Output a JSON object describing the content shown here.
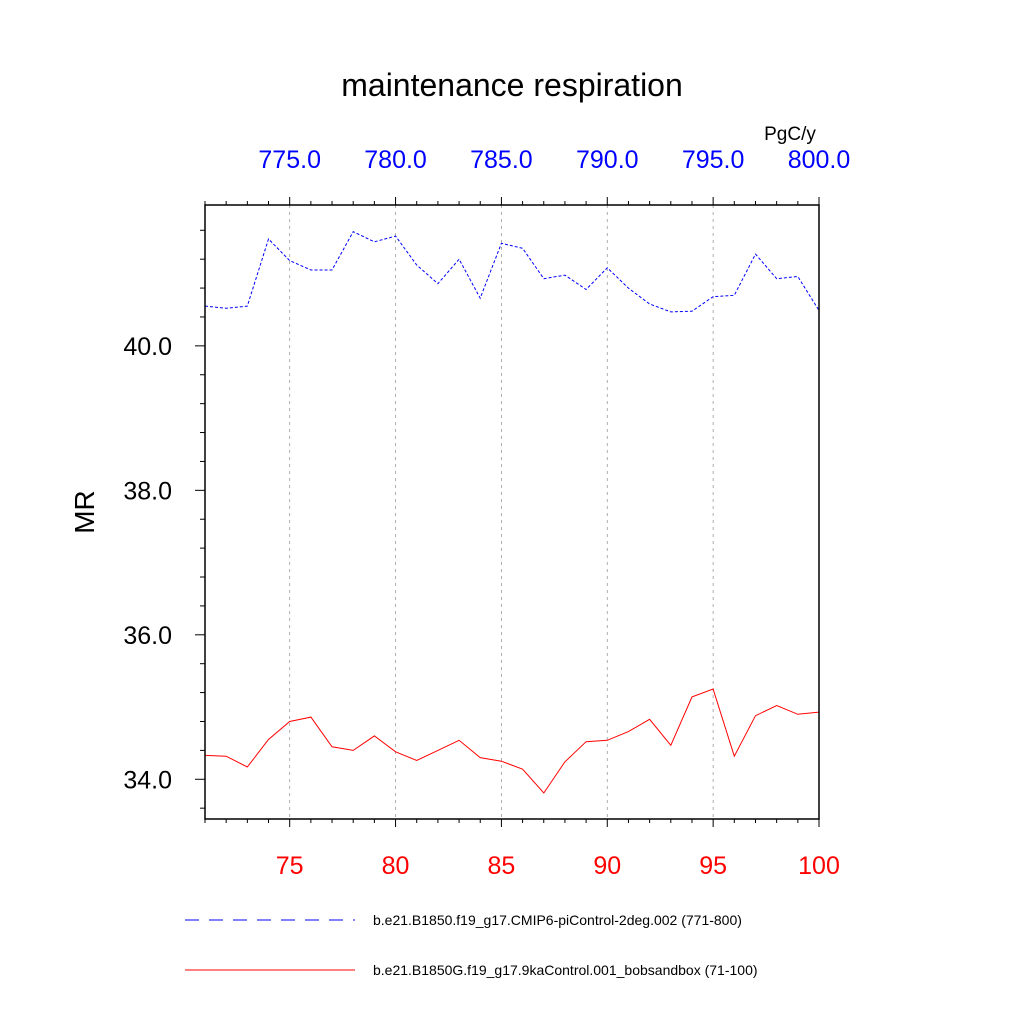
{
  "chart_data": {
    "type": "line",
    "title": "maintenance respiration",
    "units": "PgC/y",
    "ylabel": "MR",
    "ylim": [
      33.45,
      41.95
    ],
    "y_ticks": [
      34.0,
      36.0,
      38.0,
      40.0
    ],
    "y_tick_labels": [
      "34.0",
      "36.0",
      "38.0",
      "40.0"
    ],
    "x_bottom": {
      "range": [
        71,
        100
      ],
      "ticks": [
        75,
        80,
        85,
        90,
        95,
        100
      ],
      "tick_labels": [
        "75",
        "80",
        "85",
        "90",
        "95",
        "100"
      ],
      "color": "#ff0000"
    },
    "x_top": {
      "range": [
        771,
        800
      ],
      "ticks": [
        775,
        780,
        785,
        790,
        795,
        800
      ],
      "tick_labels": [
        "775.0",
        "780.0",
        "785.0",
        "790.0",
        "795.0",
        "800.0"
      ],
      "color": "#0000ff"
    },
    "grid": "vertical dashed at major ticks",
    "series": [
      {
        "name": "b.e21.B1850.f19_g17.CMIP6-piControl-2deg.002 (771-800)",
        "axis": "top",
        "color": "#0000ff",
        "dash": "dashed",
        "x": [
          771,
          772,
          773,
          774,
          775,
          776,
          777,
          778,
          779,
          780,
          781,
          782,
          783,
          784,
          785,
          786,
          787,
          788,
          789,
          790,
          791,
          792,
          793,
          794,
          795,
          796,
          797,
          798,
          799,
          800
        ],
        "values": [
          40.55,
          40.52,
          40.55,
          41.48,
          41.18,
          41.05,
          41.05,
          41.58,
          41.44,
          41.52,
          41.12,
          40.86,
          41.2,
          40.66,
          41.42,
          41.35,
          40.93,
          40.98,
          40.78,
          41.08,
          40.8,
          40.58,
          40.47,
          40.48,
          40.68,
          40.7,
          41.27,
          40.93,
          40.96,
          40.49
        ]
      },
      {
        "name": "b.e21.B1850G.f19_g17.9kaControl.001_bobsandbox (71-100)",
        "axis": "bottom",
        "color": "#ff0000",
        "dash": "solid",
        "x": [
          71,
          72,
          73,
          74,
          75,
          76,
          77,
          78,
          79,
          80,
          81,
          82,
          83,
          84,
          85,
          86,
          87,
          88,
          89,
          90,
          91,
          92,
          93,
          94,
          95,
          96,
          97,
          98,
          99,
          100
        ],
        "values": [
          34.33,
          34.32,
          34.17,
          34.55,
          34.8,
          34.86,
          34.45,
          34.4,
          34.6,
          34.38,
          34.26,
          34.4,
          34.54,
          34.3,
          34.25,
          34.14,
          33.81,
          34.24,
          34.52,
          34.54,
          34.66,
          34.83,
          34.47,
          35.14,
          35.25,
          34.32,
          34.88,
          35.02,
          34.9,
          34.93
        ]
      }
    ]
  }
}
